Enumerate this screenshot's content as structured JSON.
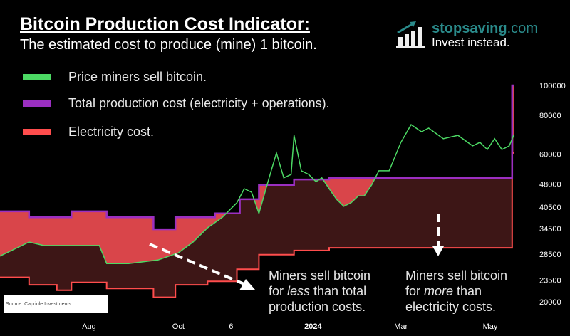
{
  "header": {
    "title": "Bitcoin Production Cost Indicator:",
    "subtitle": "The estimated cost to produce (mine) 1 bitcoin."
  },
  "logo": {
    "site_bold": "stopsaving",
    "site_rest": ".com",
    "tagline": "Invest instead.",
    "icon": "bar-chart-arrow-icon",
    "color": "#2a8a8a"
  },
  "annotations": {
    "left": {
      "pre": "Miners sell bitcoin",
      "line2_pre": "for ",
      "line2_em": "less",
      "line2_post": " than total",
      "line3": "production costs."
    },
    "right": {
      "pre": "Miners sell bitcoin",
      "line2_pre": "for ",
      "line2_em": "more",
      "line2_post": " than",
      "line3": "electricity costs."
    }
  },
  "source": "Source: Capriole Investments",
  "chart_data": {
    "type": "line",
    "y_scale": "log",
    "ylim": [
      20000,
      100000
    ],
    "grid": false,
    "x_range": [
      "2023-06-01",
      "2024-05-20"
    ],
    "y_ticks": [
      100000,
      80000,
      60000,
      48000,
      40500,
      34500,
      28500,
      23500,
      20000
    ],
    "x_ticks": [
      {
        "date": "2023-08-01",
        "label": "Aug",
        "bold": false
      },
      {
        "date": "2023-10-01",
        "label": "Oct",
        "bold": false
      },
      {
        "date": "2023-11-06",
        "label": "6",
        "bold": false
      },
      {
        "date": "2024-01-01",
        "label": "2024",
        "bold": true
      },
      {
        "date": "2024-03-01",
        "label": "Mar",
        "bold": false
      },
      {
        "date": "2024-05-01",
        "label": "May",
        "bold": false
      }
    ],
    "legend_position": "top-left",
    "colors": {
      "price": "#4cd964",
      "total": "#9b2fc1",
      "electricity": "#ff4d4d",
      "band": "#d9454a",
      "below_price": "#3d1616"
    },
    "series": [
      {
        "key": "price",
        "name": "Price miners sell bitcoin.",
        "step": false,
        "points": [
          [
            "2023-06-01",
            28100
          ],
          [
            "2023-06-11",
            29600
          ],
          [
            "2023-06-21",
            31200
          ],
          [
            "2023-07-01",
            30400
          ],
          [
            "2023-07-20",
            30400
          ],
          [
            "2023-08-08",
            30400
          ],
          [
            "2023-08-13",
            26600
          ],
          [
            "2023-08-28",
            26600
          ],
          [
            "2023-09-17",
            27300
          ],
          [
            "2023-10-01",
            28800
          ],
          [
            "2023-10-11",
            31200
          ],
          [
            "2023-10-21",
            34700
          ],
          [
            "2023-10-31",
            37500
          ],
          [
            "2023-11-10",
            41800
          ],
          [
            "2023-11-15",
            46400
          ],
          [
            "2023-11-20",
            45200
          ],
          [
            "2023-11-25",
            38600
          ],
          [
            "2023-12-02",
            50300
          ],
          [
            "2023-12-07",
            60500
          ],
          [
            "2023-12-12",
            50300
          ],
          [
            "2023-12-17",
            51600
          ],
          [
            "2023-12-19",
            69000
          ],
          [
            "2023-12-24",
            53000
          ],
          [
            "2023-12-29",
            51600
          ],
          [
            "2024-01-03",
            48900
          ],
          [
            "2024-01-07",
            50300
          ],
          [
            "2024-01-12",
            46400
          ],
          [
            "2024-01-17",
            42900
          ],
          [
            "2024-01-22",
            40700
          ],
          [
            "2024-01-27",
            41800
          ],
          [
            "2024-02-01",
            44000
          ],
          [
            "2024-02-05",
            44000
          ],
          [
            "2024-02-10",
            47700
          ],
          [
            "2024-02-15",
            53000
          ],
          [
            "2024-02-22",
            53000
          ],
          [
            "2024-03-01",
            65500
          ],
          [
            "2024-03-08",
            74700
          ],
          [
            "2024-03-15",
            70900
          ],
          [
            "2024-03-20",
            72800
          ],
          [
            "2024-03-30",
            67300
          ],
          [
            "2024-04-09",
            69000
          ],
          [
            "2024-04-19",
            63800
          ],
          [
            "2024-04-24",
            65500
          ],
          [
            "2024-04-29",
            62100
          ],
          [
            "2024-05-04",
            67300
          ],
          [
            "2024-05-09",
            62100
          ],
          [
            "2024-05-14",
            63800
          ],
          [
            "2024-05-17",
            69000
          ]
        ]
      },
      {
        "key": "total",
        "name": "Total production cost (electricity + operations).",
        "step": true,
        "points": [
          [
            "2023-06-01",
            39200
          ],
          [
            "2023-06-21",
            37500
          ],
          [
            "2023-07-20",
            39200
          ],
          [
            "2023-08-13",
            37500
          ],
          [
            "2023-09-14",
            34300
          ],
          [
            "2023-09-29",
            37500
          ],
          [
            "2023-10-26",
            38600
          ],
          [
            "2023-11-12",
            42900
          ],
          [
            "2023-11-25",
            47700
          ],
          [
            "2023-12-19",
            49700
          ],
          [
            "2024-01-12",
            50300
          ],
          [
            "2024-05-16",
            100000
          ]
        ]
      },
      {
        "key": "electricity",
        "name": "Electricity cost.",
        "step": true,
        "points": [
          [
            "2023-06-01",
            24000
          ],
          [
            "2023-06-21",
            22700
          ],
          [
            "2023-07-10",
            21800
          ],
          [
            "2023-07-20",
            23100
          ],
          [
            "2023-08-13",
            22100
          ],
          [
            "2023-09-14",
            20700
          ],
          [
            "2023-09-29",
            22700
          ],
          [
            "2023-10-21",
            23300
          ],
          [
            "2023-11-10",
            25500
          ],
          [
            "2023-11-25",
            28400
          ],
          [
            "2023-12-19",
            29300
          ],
          [
            "2024-01-12",
            29900
          ],
          [
            "2024-05-16",
            60500
          ]
        ]
      }
    ]
  }
}
